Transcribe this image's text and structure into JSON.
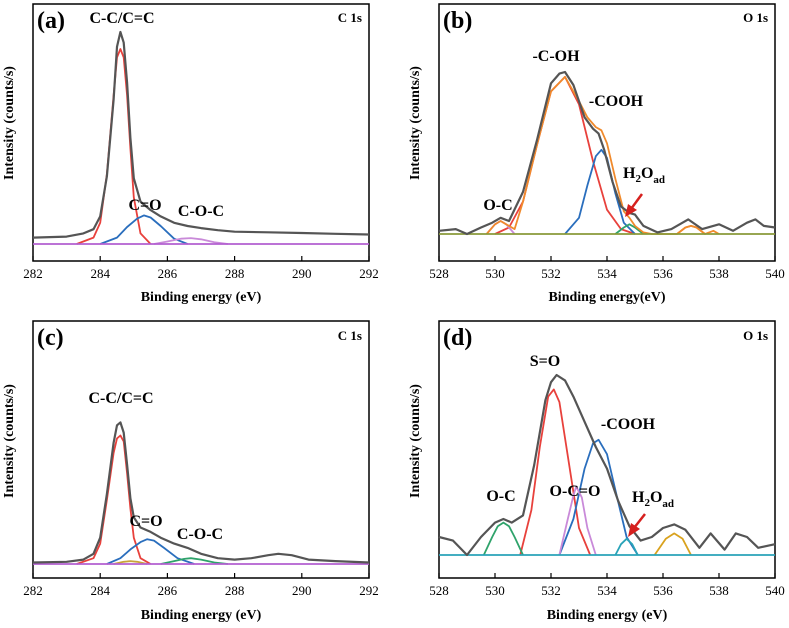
{
  "chart_data": [
    {
      "id": "a",
      "type": "line",
      "panel_label": "(a)",
      "spectrum": "C 1s",
      "xlabel": "Binding energy (eV)",
      "ylabel": "Intensity (counts/s)",
      "xlim": [
        282,
        292
      ],
      "ylim": [
        0,
        1
      ],
      "xticks": [
        "282",
        "284",
        "286",
        "288",
        "290",
        "292"
      ],
      "series": [
        {
          "name": "raw",
          "color": "#555555",
          "x": [
            282.0,
            283.0,
            283.5,
            283.8,
            284.0,
            284.2,
            284.4,
            284.5,
            284.6,
            284.7,
            284.8,
            284.9,
            285.0,
            285.2,
            285.5,
            285.8,
            286.2,
            286.6,
            287.0,
            287.5,
            288.0,
            289.0,
            290.0,
            291.0,
            292.0
          ],
          "y": [
            0.03,
            0.035,
            0.05,
            0.07,
            0.13,
            0.32,
            0.68,
            0.93,
            1.0,
            0.95,
            0.76,
            0.5,
            0.31,
            0.2,
            0.16,
            0.13,
            0.1,
            0.085,
            0.075,
            0.065,
            0.058,
            0.055,
            0.052,
            0.048,
            0.045
          ]
        },
        {
          "name": "C-C/C=C",
          "color": "#e8413c",
          "x": [
            283.3,
            283.8,
            284.0,
            284.2,
            284.4,
            284.5,
            284.6,
            284.7,
            284.8,
            284.9,
            285.0,
            285.2,
            285.5
          ],
          "y": [
            0.0,
            0.03,
            0.1,
            0.33,
            0.7,
            0.88,
            0.92,
            0.88,
            0.7,
            0.45,
            0.22,
            0.05,
            0.0
          ]
        },
        {
          "name": "C=O",
          "color": "#2a6ebd",
          "x": [
            284.0,
            284.5,
            284.8,
            285.1,
            285.3,
            285.5,
            285.8,
            286.2,
            286.6
          ],
          "y": [
            0.0,
            0.03,
            0.08,
            0.12,
            0.135,
            0.125,
            0.085,
            0.025,
            0.0
          ]
        },
        {
          "name": "C-O-C",
          "color": "#c98ad9",
          "x": [
            285.6,
            286.0,
            286.4,
            286.7,
            287.0,
            287.4,
            287.8
          ],
          "y": [
            0.0,
            0.012,
            0.025,
            0.028,
            0.022,
            0.008,
            0.0
          ]
        },
        {
          "name": "background",
          "color": "#b35fd0",
          "x": [
            282.0,
            292.0
          ],
          "y": [
            0.0,
            0.0
          ]
        }
      ],
      "annotations": [
        "C-C/C=C",
        "C=O",
        "C-O-C"
      ]
    },
    {
      "id": "b",
      "type": "line",
      "panel_label": "(b)",
      "spectrum": "O 1s",
      "xlabel": "Binding energy(eV)",
      "ylabel": "Intensity (counts/s)",
      "xlim": [
        528,
        540
      ],
      "ylim": [
        0,
        1
      ],
      "xticks": [
        "528",
        "530",
        "532",
        "534",
        "536",
        "538",
        "540"
      ],
      "series": [
        {
          "name": "raw",
          "color": "#555555",
          "x": [
            528.0,
            528.6,
            529.0,
            529.5,
            529.9,
            530.2,
            530.5,
            531.0,
            531.5,
            532.0,
            532.3,
            532.5,
            532.8,
            533.2,
            533.5,
            533.7,
            533.9,
            534.2,
            534.5,
            534.8,
            535.0,
            535.3,
            535.8,
            536.3,
            536.9,
            537.4,
            538.0,
            538.5,
            539.0,
            539.3,
            539.6,
            540.0
          ],
          "y": [
            0.02,
            0.03,
            0.0,
            0.04,
            0.07,
            0.1,
            0.08,
            0.26,
            0.58,
            0.93,
            0.99,
            1.0,
            0.92,
            0.72,
            0.65,
            0.62,
            0.52,
            0.32,
            0.17,
            0.13,
            0.12,
            0.05,
            0.01,
            0.03,
            0.09,
            0.03,
            0.06,
            0.02,
            0.07,
            0.09,
            0.05,
            0.04
          ]
        },
        {
          "name": "-C-OH",
          "color": "#e8413c",
          "x": [
            530.0,
            530.5,
            531.0,
            531.5,
            532.0,
            532.5,
            533.0,
            533.5,
            534.0,
            534.5,
            535.0
          ],
          "y": [
            0.0,
            0.04,
            0.2,
            0.55,
            0.88,
            0.97,
            0.8,
            0.45,
            0.15,
            0.03,
            0.0
          ]
        },
        {
          "name": "-COOH",
          "color": "#2a6ebd",
          "x": [
            532.5,
            533.0,
            533.3,
            533.6,
            533.8,
            534.0,
            534.3,
            534.6,
            535.0
          ],
          "y": [
            0.0,
            0.1,
            0.3,
            0.48,
            0.52,
            0.47,
            0.25,
            0.07,
            0.0
          ]
        },
        {
          "name": "O-C",
          "color": "#c98ad9",
          "x": [
            529.7,
            530.0,
            530.2,
            530.4,
            530.7
          ],
          "y": [
            0.0,
            0.06,
            0.08,
            0.06,
            0.0
          ]
        },
        {
          "name": "H2Oad",
          "color": "#2fa36b",
          "x": [
            534.3,
            534.6,
            534.8,
            535.0,
            535.3
          ],
          "y": [
            0.0,
            0.04,
            0.06,
            0.04,
            0.0
          ]
        },
        {
          "name": "extra",
          "color": "#f08a2c",
          "x": [
            536.5,
            536.8,
            537.0,
            537.2,
            537.5
          ],
          "y": [
            0.0,
            0.04,
            0.05,
            0.04,
            0.0
          ]
        },
        {
          "name": "envelope",
          "color": "#f08a2c",
          "x": [
            529.7,
            530.0,
            530.2,
            530.4,
            530.7,
            531.0,
            531.5,
            532.0,
            532.5,
            533.0,
            533.3,
            533.6,
            533.8,
            534.0,
            534.3,
            534.6,
            534.8,
            535.0,
            535.3,
            535.6,
            536.0,
            536.5,
            536.8,
            537.0,
            537.2,
            537.5,
            537.8,
            538.0
          ],
          "y": [
            0.0,
            0.06,
            0.08,
            0.06,
            0.03,
            0.2,
            0.55,
            0.88,
            0.97,
            0.82,
            0.72,
            0.66,
            0.64,
            0.56,
            0.34,
            0.14,
            0.1,
            0.05,
            0.01,
            0.0,
            0.0,
            0.0,
            0.04,
            0.05,
            0.04,
            0.0,
            0.02,
            0.0
          ]
        },
        {
          "name": "background",
          "color": "#8a9a3a",
          "x": [
            528.0,
            540.0
          ],
          "y": [
            0.0,
            0.0
          ]
        }
      ],
      "annotations": [
        "-C-OH",
        "-COOH",
        "O-C",
        "H",
        "2",
        "O",
        "ad"
      ]
    },
    {
      "id": "c",
      "type": "line",
      "panel_label": "(c)",
      "spectrum": "C 1s",
      "xlabel": "Binding energy (eV)",
      "ylabel": "Intensity (counts/s)",
      "xlim": [
        282,
        292
      ],
      "ylim": [
        0,
        1
      ],
      "xticks": [
        "282",
        "284",
        "286",
        "288",
        "290",
        "292"
      ],
      "series": [
        {
          "name": "raw",
          "color": "#555555",
          "x": [
            282.0,
            283.0,
            283.5,
            283.8,
            284.0,
            284.2,
            284.4,
            284.5,
            284.6,
            284.7,
            284.8,
            284.9,
            285.0,
            285.2,
            285.5,
            285.8,
            286.2,
            286.6,
            287.0,
            287.5,
            288.0,
            288.5,
            289.0,
            289.3,
            289.7,
            290.2,
            291.0,
            292.0
          ],
          "y": [
            0.01,
            0.015,
            0.03,
            0.07,
            0.18,
            0.48,
            0.83,
            0.95,
            0.97,
            0.9,
            0.68,
            0.45,
            0.32,
            0.25,
            0.22,
            0.18,
            0.14,
            0.11,
            0.07,
            0.04,
            0.03,
            0.04,
            0.06,
            0.07,
            0.06,
            0.03,
            0.02,
            0.01
          ]
        },
        {
          "name": "C-C/C=C",
          "color": "#e8413c",
          "x": [
            283.3,
            283.8,
            284.0,
            284.2,
            284.4,
            284.5,
            284.6,
            284.7,
            284.8,
            284.9,
            285.0,
            285.2,
            285.5
          ],
          "y": [
            0.0,
            0.04,
            0.14,
            0.44,
            0.76,
            0.86,
            0.88,
            0.84,
            0.62,
            0.38,
            0.18,
            0.04,
            0.0
          ]
        },
        {
          "name": "C=O",
          "color": "#2a6ebd",
          "x": [
            284.2,
            284.6,
            284.9,
            285.2,
            285.4,
            285.6,
            285.9,
            286.3,
            286.8
          ],
          "y": [
            0.0,
            0.04,
            0.1,
            0.15,
            0.17,
            0.16,
            0.11,
            0.04,
            0.0
          ]
        },
        {
          "name": "C-O-C",
          "color": "#2fa36b",
          "x": [
            285.8,
            286.2,
            286.5,
            286.7,
            287.0,
            287.4,
            287.8
          ],
          "y": [
            0.0,
            0.02,
            0.035,
            0.04,
            0.03,
            0.01,
            0.0
          ]
        },
        {
          "name": "small",
          "color": "#c9a33a",
          "x": [
            284.4,
            284.7,
            284.9,
            285.1,
            285.4
          ],
          "y": [
            0.0,
            0.015,
            0.02,
            0.015,
            0.0
          ]
        },
        {
          "name": "background",
          "color": "#b35fd0",
          "x": [
            282.0,
            292.0
          ],
          "y": [
            0.0,
            0.0
          ]
        }
      ],
      "annotations": [
        "C-C/C=C",
        "C=O",
        "C-O-C"
      ]
    },
    {
      "id": "d",
      "type": "line",
      "panel_label": "(d)",
      "spectrum": "O 1s",
      "xlabel": "Binding energy (eV)",
      "ylabel": "Intensity (counts/s)",
      "xlim": [
        528,
        540
      ],
      "ylim": [
        0,
        1
      ],
      "xticks": [
        "528",
        "530",
        "532",
        "534",
        "536",
        "538",
        "540"
      ],
      "series": [
        {
          "name": "raw",
          "color": "#555555",
          "x": [
            528.0,
            528.5,
            529.0,
            529.5,
            530.0,
            530.3,
            530.6,
            531.0,
            531.4,
            531.8,
            532.0,
            532.2,
            532.5,
            532.8,
            533.2,
            533.6,
            534.0,
            534.4,
            534.8,
            535.2,
            535.6,
            536.0,
            536.4,
            536.8,
            537.3,
            537.7,
            538.2,
            538.6,
            539.0,
            539.4,
            540.0
          ],
          "y": [
            0.1,
            0.08,
            0.0,
            0.1,
            0.18,
            0.2,
            0.18,
            0.22,
            0.5,
            0.86,
            0.96,
            1.0,
            0.97,
            0.88,
            0.74,
            0.6,
            0.48,
            0.3,
            0.16,
            0.08,
            0.1,
            0.15,
            0.17,
            0.14,
            0.04,
            0.12,
            0.03,
            0.12,
            0.1,
            0.04,
            0.06
          ]
        },
        {
          "name": "S=O",
          "color": "#e8413c",
          "x": [
            530.9,
            531.3,
            531.6,
            531.9,
            532.1,
            532.3,
            532.6,
            533.0,
            533.4
          ],
          "y": [
            0.0,
            0.25,
            0.6,
            0.88,
            0.92,
            0.85,
            0.55,
            0.15,
            0.0
          ]
        },
        {
          "name": "-COOH",
          "color": "#2a6ebd",
          "x": [
            532.3,
            532.8,
            533.2,
            533.5,
            533.7,
            534.0,
            534.3,
            534.7,
            535.1
          ],
          "y": [
            0.0,
            0.2,
            0.48,
            0.62,
            0.64,
            0.56,
            0.36,
            0.1,
            0.0
          ]
        },
        {
          "name": "O-C",
          "color": "#2fa36b",
          "x": [
            529.6,
            529.9,
            530.1,
            530.3,
            530.5,
            530.7,
            531.0
          ],
          "y": [
            0.0,
            0.1,
            0.16,
            0.18,
            0.16,
            0.1,
            0.0
          ]
        },
        {
          "name": "O-C=O",
          "color": "#c98ad9",
          "x": [
            532.3,
            532.6,
            532.8,
            532.9,
            533.1,
            533.3,
            533.6
          ],
          "y": [
            0.0,
            0.2,
            0.33,
            0.38,
            0.32,
            0.15,
            0.0
          ]
        },
        {
          "name": "H2Oad",
          "color": "#29a3b8",
          "x": [
            534.3,
            534.5,
            534.7,
            534.9,
            535.1
          ],
          "y": [
            0.0,
            0.06,
            0.09,
            0.06,
            0.0
          ]
        },
        {
          "name": "extra",
          "color": "#d9a21e",
          "x": [
            535.7,
            536.1,
            536.4,
            536.7,
            537.0
          ],
          "y": [
            0.0,
            0.09,
            0.12,
            0.09,
            0.0
          ]
        },
        {
          "name": "background",
          "color": "#29a3b8",
          "x": [
            528.0,
            540.0
          ],
          "y": [
            0.0,
            0.0
          ]
        }
      ],
      "annotations": [
        "S=O",
        "-COOH",
        "O-C",
        "O-C=O",
        "H",
        "2",
        "O",
        "ad"
      ]
    }
  ]
}
